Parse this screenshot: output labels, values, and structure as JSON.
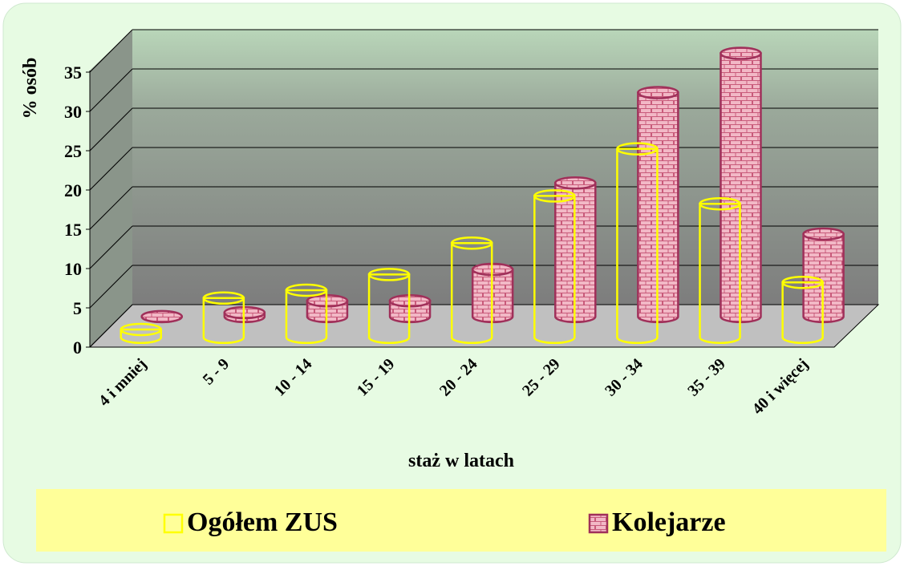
{
  "chart_data": {
    "type": "bar3d",
    "x_label": "staż w latach",
    "y_label": "% osób",
    "categories": [
      "4 i mniej",
      "5 - 9",
      "10 - 14",
      "15 - 19",
      "20 - 24",
      "25 - 29",
      "30 - 34",
      "35 - 39",
      "40 i więcej"
    ],
    "series": [
      {
        "name": "Ogółem ZUS",
        "color": "#ffff00",
        "values": [
          1,
          5,
          6,
          8,
          12,
          18,
          24,
          17,
          7
        ]
      },
      {
        "name": "Kolejarze",
        "color": "#f2b8c6",
        "values": [
          0,
          0.5,
          2,
          2,
          6,
          17,
          28.5,
          33.5,
          10.5
        ]
      }
    ],
    "ylim": [
      0,
      35
    ],
    "yticks": [
      0,
      5,
      10,
      15,
      20,
      25,
      30,
      35
    ],
    "grid": true,
    "legend": "bottom"
  }
}
